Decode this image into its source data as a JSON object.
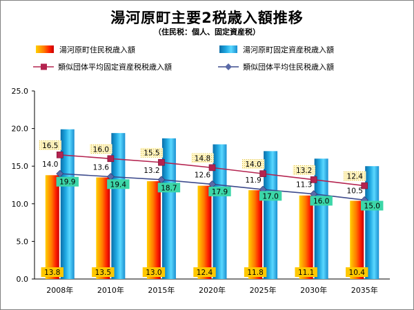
{
  "title": "湯河原町主要2税歳入額推移",
  "subtitle": "（住民税：個人、固定資産税）",
  "chart_data": {
    "type": "bar",
    "categories": [
      "2008年",
      "2010年",
      "2015年",
      "2020年",
      "2025年",
      "2030年",
      "2035年"
    ],
    "ylim": [
      0,
      25
    ],
    "yticks": [
      "0.0",
      "5.0",
      "10.0",
      "15.0",
      "20.0",
      "25.0"
    ],
    "grid": false,
    "legend_position": "top",
    "series": [
      {
        "name": "湯河原町住民税歳入額",
        "kind": "bar",
        "color": "#ff3300",
        "values": [
          13.8,
          13.5,
          13.0,
          12.4,
          11.8,
          11.1,
          10.4
        ],
        "labels": [
          "13.8",
          "13.5",
          "13.0",
          "12.4",
          "11.8",
          "11.1",
          "10.4"
        ]
      },
      {
        "name": "湯河原町固定資産税歳入額",
        "kind": "bar",
        "color": "#1f9fd8",
        "values": [
          19.9,
          19.4,
          18.7,
          17.9,
          17.0,
          16.0,
          15.0
        ],
        "labels": [
          "19.9",
          "19.4",
          "18.7",
          "17.9",
          "17.0",
          "16.0",
          "15.0"
        ]
      },
      {
        "name": "類似団体平均固定資産税税歳入額",
        "kind": "line",
        "color": "#b4234f",
        "values": [
          16.5,
          16.0,
          15.5,
          14.8,
          14.0,
          13.2,
          12.4
        ],
        "labels": [
          "16.5",
          "16.0",
          "15.5",
          "14.8",
          "14.0",
          "13.2",
          "12.4"
        ]
      },
      {
        "name": "類似団体平均住民税歳入額",
        "kind": "line",
        "color": "#3c4a8c",
        "values": [
          14.0,
          13.6,
          13.2,
          12.6,
          11.9,
          11.3,
          10.5
        ],
        "labels": [
          "14.0",
          "13.6",
          "13.2",
          "12.6",
          "11.9",
          "11.3",
          "10.5"
        ]
      }
    ]
  }
}
